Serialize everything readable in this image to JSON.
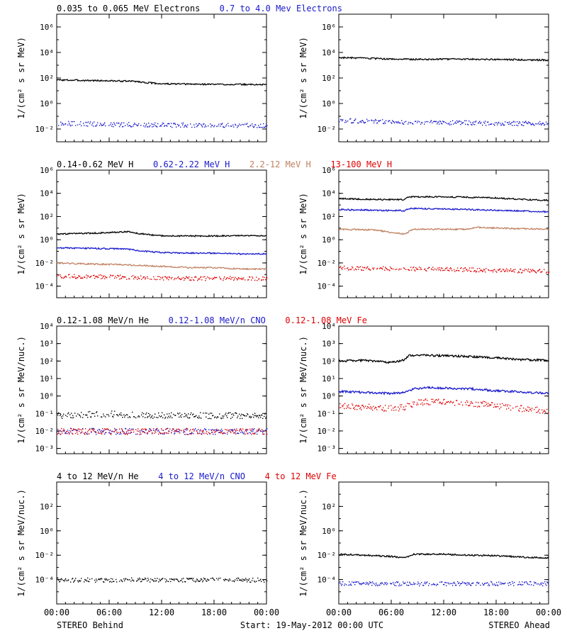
{
  "footer": {
    "left_label": "STEREO Behind",
    "center_label": "Start: 19-May-2012 00:00 UTC",
    "right_label": "STEREO Ahead"
  },
  "colors": {
    "black": "#000000",
    "blue": "#1a1acc",
    "tan": "#c08060",
    "red": "#e00000"
  },
  "chart_data": [
    {
      "type": "scatter",
      "panel": "row1-left",
      "title_segments": [
        {
          "text": "0.035 to 0.065 MeV Electrons",
          "color": "#000000"
        },
        {
          "text": "0.7 to 4.0 Mev Electrons",
          "color": "#1a1acc"
        }
      ],
      "ylabel": "1/(cm² s sr MeV)",
      "y_scale": "log",
      "ylim": [
        0.001,
        10000000
      ],
      "y_ticks": [
        0.01,
        1,
        100,
        10000,
        1000000
      ],
      "y_tick_labels": [
        "10⁻²",
        "10⁰",
        "10²",
        "10⁴",
        "10⁶"
      ],
      "x_ticks": [
        "00:00",
        "06:00",
        "12:00",
        "18:00",
        "00:00"
      ],
      "x_range_hours": [
        0,
        24
      ],
      "series": [
        {
          "color": "#000000",
          "style": "line",
          "x": [
            0,
            3,
            6,
            9,
            10,
            12,
            15,
            18,
            21,
            24
          ],
          "y": [
            70,
            65,
            60,
            55,
            45,
            35,
            33,
            32,
            31,
            30
          ]
        },
        {
          "color": "#1a1acc",
          "style": "dots",
          "x": [
            0,
            6,
            12,
            18,
            24
          ],
          "y": [
            0.03,
            0.025,
            0.022,
            0.022,
            0.02
          ]
        }
      ]
    },
    {
      "type": "scatter",
      "panel": "row1-right",
      "ylabel": "1/(cm² s sr MeV)",
      "y_scale": "log",
      "ylim": [
        0.001,
        10000000
      ],
      "y_ticks": [
        0.01,
        1,
        100,
        10000,
        1000000
      ],
      "y_tick_labels": [
        "10⁻²",
        "10⁰",
        "10²",
        "10⁴",
        "10⁶"
      ],
      "x_ticks": [
        "00:00",
        "06:00",
        "12:00",
        "18:00",
        "00:00"
      ],
      "x_range_hours": [
        0,
        24
      ],
      "series": [
        {
          "color": "#000000",
          "style": "line",
          "x": [
            0,
            3,
            6,
            9,
            12,
            15,
            18,
            21,
            24
          ],
          "y": [
            4000,
            3500,
            3000,
            2900,
            3000,
            3000,
            2800,
            2700,
            2500
          ]
        },
        {
          "color": "#1a1acc",
          "style": "dots",
          "x": [
            0,
            6,
            12,
            18,
            24
          ],
          "y": [
            0.05,
            0.04,
            0.035,
            0.03,
            0.03
          ]
        }
      ]
    },
    {
      "type": "scatter",
      "panel": "row2-left",
      "title_segments": [
        {
          "text": "0.14-0.62 MeV H",
          "color": "#000000"
        },
        {
          "text": "0.62-2.22 MeV H",
          "color": "#1a1acc"
        },
        {
          "text": "2.2-12 MeV H",
          "color": "#c08060"
        },
        {
          "text": "13-100 MeV H",
          "color": "#e00000"
        }
      ],
      "ylabel": "1/(cm² s sr MeV)",
      "y_scale": "log",
      "ylim": [
        1e-05,
        1000000
      ],
      "y_ticks": [
        0.0001,
        0.01,
        1,
        100,
        10000,
        1000000
      ],
      "y_tick_labels": [
        "10⁻⁴",
        "10⁻²",
        "10⁰",
        "10²",
        "10⁴",
        "10⁶"
      ],
      "x_ticks": [
        "00:00",
        "06:00",
        "12:00",
        "18:00",
        "00:00"
      ],
      "x_range_hours": [
        0,
        24
      ],
      "series": [
        {
          "color": "#000000",
          "style": "line",
          "x": [
            0,
            3,
            6,
            8,
            10,
            12,
            15,
            18,
            21,
            24
          ],
          "y": [
            3,
            3.5,
            4,
            5,
            3,
            2.2,
            2.1,
            2.1,
            2.2,
            2.2
          ]
        },
        {
          "color": "#1a1acc",
          "style": "line",
          "x": [
            0,
            4,
            8,
            10,
            12,
            15,
            18,
            21,
            24
          ],
          "y": [
            0.2,
            0.18,
            0.16,
            0.1,
            0.08,
            0.07,
            0.07,
            0.06,
            0.06
          ]
        },
        {
          "color": "#c08060",
          "style": "line",
          "x": [
            0,
            4,
            8,
            12,
            15,
            18,
            21,
            24
          ],
          "y": [
            0.01,
            0.008,
            0.007,
            0.005,
            0.004,
            0.004,
            0.003,
            0.003
          ]
        },
        {
          "color": "#e00000",
          "style": "dots",
          "x": [
            0,
            6,
            12,
            18,
            24
          ],
          "y": [
            0.0008,
            0.0007,
            0.0005,
            0.0005,
            0.0005
          ]
        }
      ]
    },
    {
      "type": "scatter",
      "panel": "row2-right",
      "ylabel": "1/(cm² s sr MeV)",
      "y_scale": "log",
      "ylim": [
        1e-05,
        1000000
      ],
      "y_ticks": [
        0.0001,
        0.01,
        1,
        100,
        10000,
        1000000
      ],
      "y_tick_labels": [
        "10⁻⁴",
        "10⁻²",
        "10⁰",
        "10²",
        "10⁴",
        "10⁶"
      ],
      "x_ticks": [
        "00:00",
        "06:00",
        "12:00",
        "18:00",
        "00:00"
      ],
      "x_range_hours": [
        0,
        24
      ],
      "series": [
        {
          "color": "#000000",
          "style": "line",
          "x": [
            0,
            4,
            7.5,
            8,
            12,
            15,
            18,
            21,
            24
          ],
          "y": [
            3500,
            3000,
            2800,
            5000,
            5000,
            4500,
            4000,
            3000,
            2500
          ]
        },
        {
          "color": "#1a1acc",
          "style": "line",
          "x": [
            0,
            4,
            7.5,
            8,
            12,
            15,
            18,
            21,
            24
          ],
          "y": [
            400,
            350,
            320,
            500,
            450,
            400,
            350,
            300,
            250
          ]
        },
        {
          "color": "#c08060",
          "style": "line",
          "x": [
            0,
            4,
            7.5,
            8.5,
            12,
            15,
            15.5,
            18,
            21,
            24
          ],
          "y": [
            8,
            7,
            3,
            8,
            8,
            8,
            12,
            10,
            9,
            8
          ]
        },
        {
          "color": "#e00000",
          "style": "dots",
          "x": [
            0,
            6,
            12,
            18,
            24
          ],
          "y": [
            0.004,
            0.0035,
            0.003,
            0.0025,
            0.002
          ]
        }
      ]
    },
    {
      "type": "scatter",
      "panel": "row3-left",
      "title_segments": [
        {
          "text": "0.12-1.08 MeV/n He",
          "color": "#000000"
        },
        {
          "text": "0.12-1.08 MeV/n CNO",
          "color": "#1a1acc"
        },
        {
          "text": "0.12-1.08 MeV Fe",
          "color": "#e00000"
        }
      ],
      "ylabel": "1/(cm² s sr MeV/nuc.)",
      "y_scale": "log",
      "ylim": [
        0.0005,
        10000
      ],
      "y_ticks": [
        0.001,
        0.01,
        0.1,
        1,
        10,
        100,
        1000,
        10000
      ],
      "y_tick_labels": [
        "10⁻³",
        "10⁻²",
        "10⁻¹",
        "10⁰",
        "10¹",
        "10²",
        "10³",
        "10⁴"
      ],
      "x_ticks": [
        "00:00",
        "06:00",
        "12:00",
        "18:00",
        "00:00"
      ],
      "x_range_hours": [
        0,
        24
      ],
      "series": [
        {
          "color": "#000000",
          "style": "dots",
          "x": [
            0,
            6,
            12,
            18,
            24
          ],
          "y": [
            0.08,
            0.1,
            0.08,
            0.08,
            0.08
          ]
        },
        {
          "color": "#1a1acc",
          "style": "dots",
          "x": [
            0,
            6,
            12,
            18,
            24
          ],
          "y": [
            0.01,
            0.01,
            0.01,
            0.01,
            0.01
          ]
        },
        {
          "color": "#e00000",
          "style": "dots",
          "x": [
            0,
            6,
            12,
            18,
            24
          ],
          "y": [
            0.01,
            0.01,
            0.01,
            0.01,
            0.01
          ]
        }
      ]
    },
    {
      "type": "scatter",
      "panel": "row3-right",
      "ylabel": "1/(cm² s sr MeV/nuc.)",
      "y_scale": "log",
      "ylim": [
        0.0005,
        10000
      ],
      "y_ticks": [
        0.001,
        0.01,
        0.1,
        1,
        10,
        100,
        1000,
        10000
      ],
      "y_tick_labels": [
        "10⁻³",
        "10⁻²",
        "10⁻¹",
        "10⁰",
        "10¹",
        "10²",
        "10³",
        "10⁴"
      ],
      "x_ticks": [
        "00:00",
        "06:00",
        "12:00",
        "18:00",
        "00:00"
      ],
      "x_range_hours": [
        0,
        24
      ],
      "series": [
        {
          "color": "#000000",
          "style": "line",
          "x": [
            0,
            3,
            6,
            7.5,
            8,
            9,
            12,
            15,
            18,
            21,
            24
          ],
          "y": [
            100,
            110,
            80,
            120,
            200,
            220,
            200,
            180,
            150,
            120,
            110
          ]
        },
        {
          "color": "#1a1acc",
          "style": "line",
          "x": [
            0,
            3,
            6,
            7.5,
            8.5,
            10,
            12,
            15,
            18,
            21,
            24
          ],
          "y": [
            1.8,
            1.6,
            1.4,
            1.6,
            2.5,
            3,
            2.8,
            2.6,
            2,
            1.7,
            1.4
          ]
        },
        {
          "color": "#e00000",
          "style": "dots",
          "x": [
            0,
            3,
            6,
            7.5,
            8.5,
            10,
            12,
            15,
            18,
            21,
            24
          ],
          "y": [
            0.3,
            0.25,
            0.2,
            0.25,
            0.4,
            0.5,
            0.5,
            0.4,
            0.3,
            0.2,
            0.15
          ]
        }
      ]
    },
    {
      "type": "scatter",
      "panel": "row4-left",
      "title_segments": [
        {
          "text": "4 to 12 MeV/n He",
          "color": "#000000"
        },
        {
          "text": "4 to 12 MeV/n CNO",
          "color": "#1a1acc"
        },
        {
          "text": "4 to 12 MeV Fe",
          "color": "#e00000"
        }
      ],
      "ylabel": "1/(cm² s sr MeV/nuc.)",
      "y_scale": "log",
      "ylim": [
        1e-06,
        10000
      ],
      "y_ticks": [
        0.0001,
        0.01,
        1,
        100
      ],
      "y_tick_labels": [
        "10⁻⁴",
        "10⁻²",
        "10⁰",
        "10²"
      ],
      "x_ticks": [
        "00:00",
        "06:00",
        "12:00",
        "18:00",
        "00:00"
      ],
      "x_range_hours": [
        0,
        24
      ],
      "series": [
        {
          "color": "#000000",
          "style": "dots",
          "x": [
            0,
            6,
            12,
            18,
            24
          ],
          "y": [
            0.0001,
            0.0001,
            0.0001,
            0.0001,
            0.0001
          ]
        }
      ]
    },
    {
      "type": "scatter",
      "panel": "row4-right",
      "ylabel": "1/(cm² s sr MeV/nuc.)",
      "y_scale": "log",
      "ylim": [
        1e-06,
        10000
      ],
      "y_ticks": [
        0.0001,
        0.01,
        1,
        100
      ],
      "y_tick_labels": [
        "10⁻⁴",
        "10⁻²",
        "10⁰",
        "10²"
      ],
      "x_ticks": [
        "00:00",
        "06:00",
        "12:00",
        "18:00",
        "00:00"
      ],
      "x_range_hours": [
        0,
        24
      ],
      "series": [
        {
          "color": "#000000",
          "style": "line",
          "x": [
            0,
            3,
            6,
            7.5,
            8.5,
            12,
            15,
            18,
            21,
            24
          ],
          "y": [
            0.012,
            0.01,
            0.008,
            0.006,
            0.012,
            0.012,
            0.01,
            0.009,
            0.007,
            0.006
          ]
        },
        {
          "color": "#1a1acc",
          "style": "dots",
          "x": [
            0,
            6,
            12,
            18,
            24
          ],
          "y": [
            5e-05,
            5e-05,
            5e-05,
            5e-05,
            5e-05
          ]
        }
      ]
    }
  ]
}
